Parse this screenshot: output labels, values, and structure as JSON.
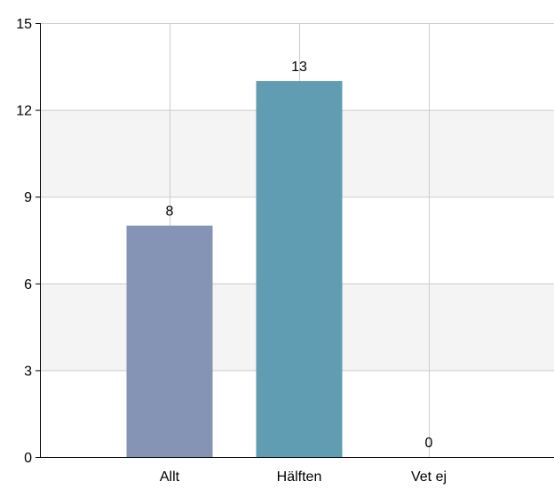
{
  "chart_data": {
    "type": "bar",
    "title": "",
    "xlabel": "",
    "ylabel": "",
    "categories": [
      "Allt",
      "Hälften",
      "Vet ej"
    ],
    "values": [
      8,
      13,
      0
    ],
    "ylim": [
      0,
      15
    ],
    "yticks": [
      0,
      3,
      6,
      9,
      12,
      15
    ],
    "bar_colors": [
      "#8594b5",
      "#619db2",
      "#8594b5"
    ],
    "grid": true,
    "band_color": "#f4f4f4",
    "grid_color": "#cccccc",
    "axis_color": "#000000",
    "data_labels": [
      "8",
      "13",
      "0"
    ]
  }
}
